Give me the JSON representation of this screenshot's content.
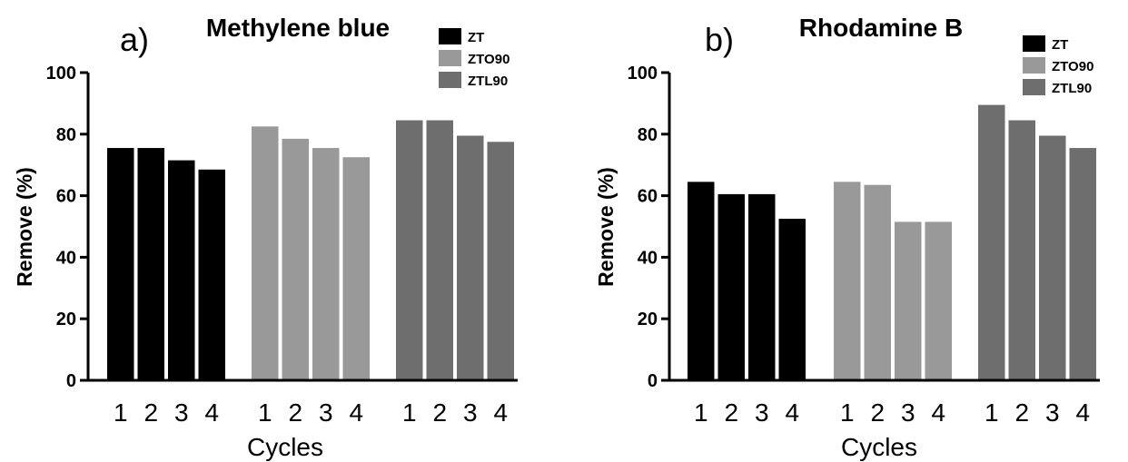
{
  "chart_data": [
    {
      "type": "bar",
      "panel_label": "a)",
      "title": "Methylene blue",
      "xlabel": "Cycles",
      "ylabel": "Remove (%)",
      "ylim": [
        0,
        100
      ],
      "yticks": [
        "0",
        "20",
        "40",
        "60",
        "80",
        "100"
      ],
      "categories": [
        "1",
        "2",
        "3",
        "4"
      ],
      "series": [
        {
          "name": "ZT",
          "color": "#000000",
          "values": [
            75.5,
            75.5,
            71.5,
            68.5
          ]
        },
        {
          "name": "ZTO90",
          "color": "#999999",
          "values": [
            82.5,
            78.5,
            75.5,
            72.5
          ]
        },
        {
          "name": "ZTL90",
          "color": "#6e6e6e",
          "values": [
            84.5,
            84.5,
            79.5,
            77.5
          ]
        }
      ],
      "legend": "top-right",
      "grid": false
    },
    {
      "type": "bar",
      "panel_label": "b)",
      "title": "Rhodamine B",
      "xlabel": "Cycles",
      "ylabel": "Remove (%)",
      "ylim": [
        0,
        100
      ],
      "yticks": [
        "0",
        "20",
        "40",
        "60",
        "80",
        "100"
      ],
      "categories": [
        "1",
        "2",
        "3",
        "4"
      ],
      "series": [
        {
          "name": "ZT",
          "color": "#000000",
          "values": [
            64.5,
            60.5,
            60.5,
            52.5
          ]
        },
        {
          "name": "ZTO90",
          "color": "#999999",
          "values": [
            64.5,
            63.5,
            51.5,
            51.5
          ]
        },
        {
          "name": "ZTL90",
          "color": "#6e6e6e",
          "values": [
            89.5,
            84.5,
            79.5,
            75.5
          ]
        }
      ],
      "legend": "top-right",
      "grid": false
    }
  ]
}
